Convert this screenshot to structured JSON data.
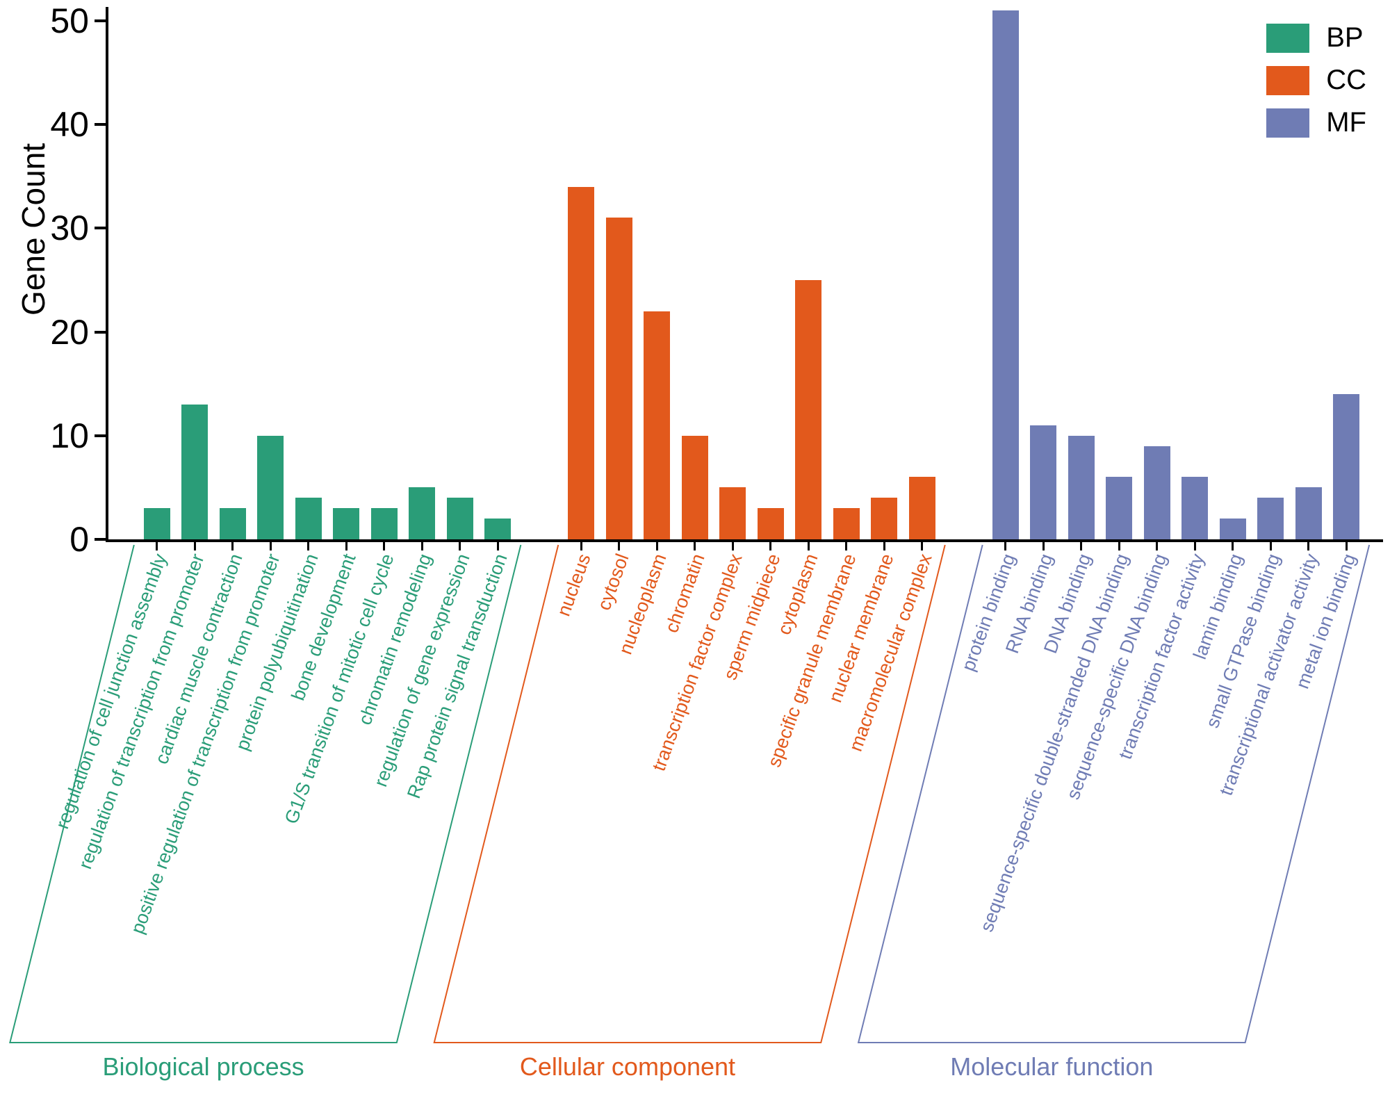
{
  "chart_data": {
    "type": "bar",
    "title": "",
    "ylabel": "Gene Count",
    "ylim": [
      0,
      50
    ],
    "yticks": [
      0,
      10,
      20,
      30,
      40,
      50
    ],
    "grid": false,
    "legend_position": "top-right",
    "legend": [
      {
        "label": "BP",
        "color": "#2a9d78"
      },
      {
        "label": "CC",
        "color": "#e2591c"
      },
      {
        "label": "MF",
        "color": "#6f7cb4"
      }
    ],
    "groups": [
      {
        "name": "Biological process",
        "legend_label": "BP",
        "color": "#2a9d78",
        "categories": [
          "regulation of cell junction assembly",
          "regulation of transcription from promoter",
          "cardiac muscle contraction",
          "positive regulation of transcription from promoter",
          "protein polyubiquitination",
          "bone development",
          "G1/S transition of mitotic cell cycle",
          "chromatin remodeling",
          "regulation of gene expression",
          "Rap protein signal transduction"
        ],
        "values": [
          3,
          13,
          3,
          10,
          4,
          3,
          3,
          5,
          4,
          2
        ]
      },
      {
        "name": "Cellular component",
        "legend_label": "CC",
        "color": "#e2591c",
        "categories": [
          "nucleus",
          "cytosol",
          "nucleoplasm",
          "chromatin",
          "transcription factor complex",
          "sperm midpiece",
          "cytoplasm",
          "specific granule membrane",
          "nuclear membrane",
          "macromolecular complex"
        ],
        "values": [
          34,
          31,
          22,
          10,
          5,
          3,
          25,
          3,
          4,
          6
        ]
      },
      {
        "name": "Molecular function",
        "legend_label": "MF",
        "color": "#6f7cb4",
        "categories": [
          "protein binding",
          "RNA binding",
          "DNA binding",
          "sequence-specific double-stranded DNA binding",
          "sequence-specific DNA binding",
          "transcription factor activity",
          "lamin binding",
          "small GTPase binding",
          "transcriptional activator activity",
          "metal ion binding"
        ],
        "values": [
          51,
          11,
          10,
          6,
          9,
          6,
          2,
          4,
          5,
          14
        ]
      }
    ]
  }
}
